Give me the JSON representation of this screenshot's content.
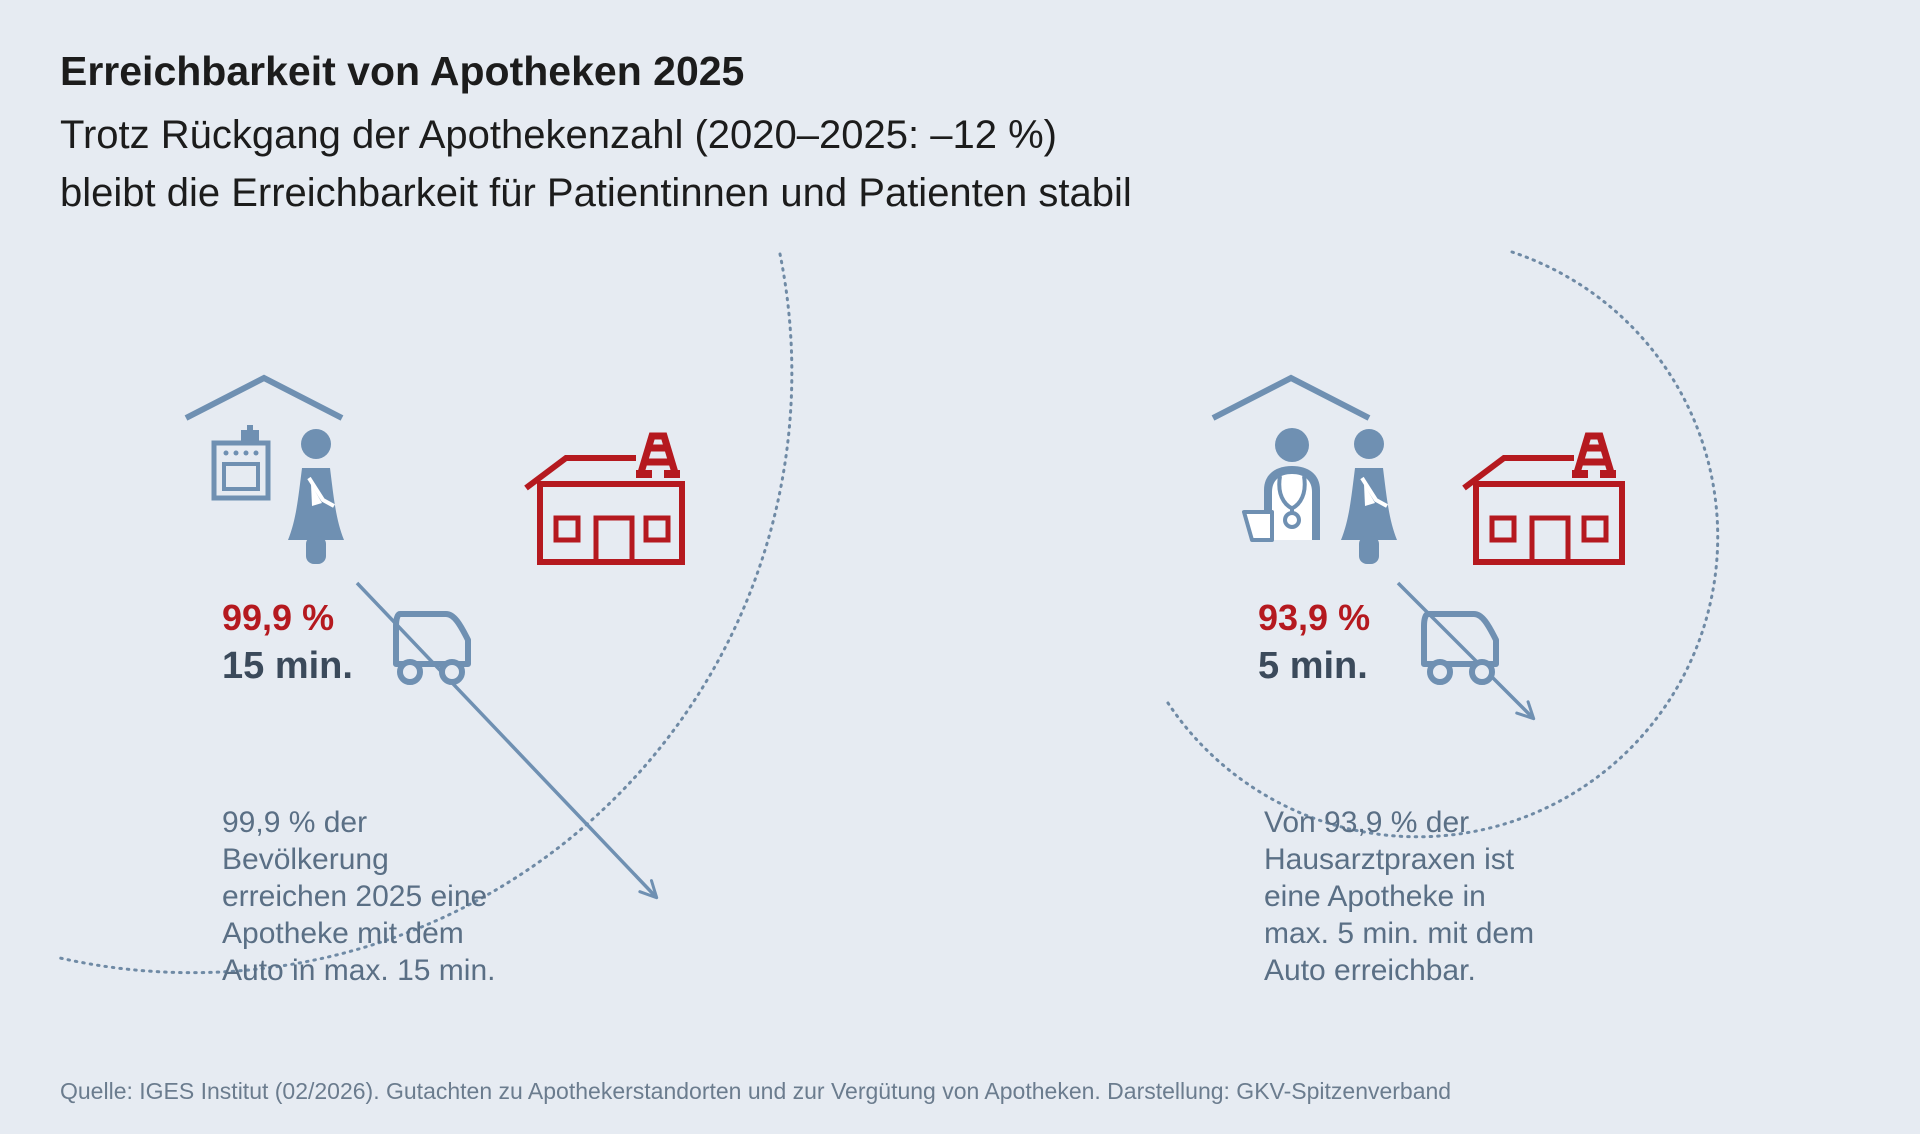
{
  "header": {
    "title": "Erreichbarkeit von Apotheken 2025",
    "subtitle_line1": "Trotz Rückgang der Apothekenzahl (2020–2025: –12 %)",
    "subtitle_line2": "bleibt die Erreichbarkeit für Patientinnen und Patienten stabil"
  },
  "panels": [
    {
      "percent": "99,9 %",
      "time": "15 min.",
      "description": [
        "99,9 % der",
        "Bevölkerung",
        "erreichen 2025 eine",
        "Apotheke mit dem",
        "Auto in max. 15 min."
      ],
      "icons": [
        "house-roof-icon",
        "stove-icon",
        "person-icon",
        "car-icon",
        "pharmacy-icon"
      ]
    },
    {
      "percent": "93,9 %",
      "time": "5 min.",
      "description": [
        "Von 93,9 % der",
        "Hausarztpraxen ist",
        "eine Apotheke in",
        "max. 5 min. mit dem",
        "Auto erreichbar."
      ],
      "icons": [
        "house-roof-icon",
        "doctor-icon",
        "person-icon",
        "car-icon",
        "pharmacy-icon"
      ]
    }
  ],
  "footer": {
    "source": "Quelle: IGES Institut (02/2026). Gutachten zu Apothekerstandorten und zur Vergütung von Apotheken. Darstellung: GKV-Spitzenverband"
  },
  "colors": {
    "background": "#e6ebf2",
    "accent_red": "#b5191f",
    "icon_blue": "#6f90b2",
    "text_dark": "#3b4a5b"
  }
}
